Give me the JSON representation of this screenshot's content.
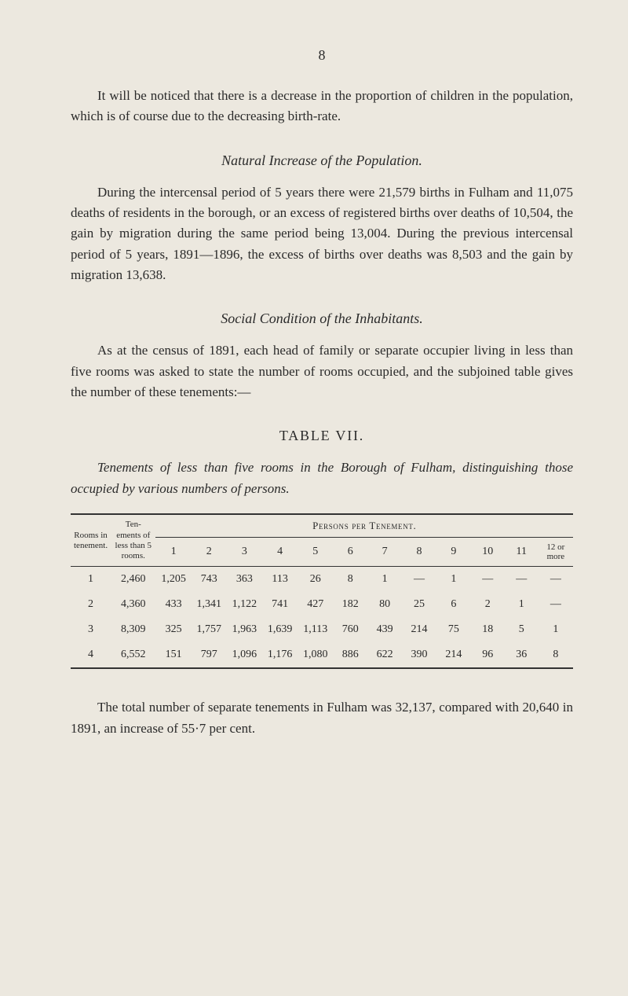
{
  "page_number": "8",
  "para1": "It will be noticed that there is a decrease in the proportion of children in the population, which is of course due to the decreasing birth-rate.",
  "section1": {
    "title": "Natural Increase of the Population.",
    "para": "During the intercensal period of 5 years there were 21,579 births in Fulham and 11,075 deaths of residents in the borough, or an excess of registered births over deaths of 10,504, the gain by migration during the same period being 13,004. During the previous intercensal period of 5 years, 1891—1896, the excess of births over deaths was 8,503 and the gain by migration 13,638."
  },
  "section2": {
    "title": "Social Condition of the Inhabitants.",
    "para": "As at the census of 1891, each head of family or separate occupier living in less than five rooms was asked to state the number of rooms occupied, and the subjoined table gives the number of these tenements:—"
  },
  "table": {
    "label": "TABLE VII.",
    "caption": "Tenements of less than five rooms in the Borough of Fulham, distinguishing those occupied by various numbers of persons.",
    "header_rooms": "Rooms in tenement.",
    "header_tenements": "Ten-ements of less than 5 rooms.",
    "header_persons": "Persons per Tenement.",
    "cols": [
      "1",
      "2",
      "3",
      "4",
      "5",
      "6",
      "7",
      "8",
      "9",
      "10",
      "11"
    ],
    "last_col": "12 or more",
    "rows": [
      {
        "r": "1",
        "t": "2,460",
        "c": [
          "1,205",
          "743",
          "363",
          "113",
          "26",
          "8",
          "1",
          "—",
          "1",
          "—",
          "—",
          "—"
        ]
      },
      {
        "r": "2",
        "t": "4,360",
        "c": [
          "433",
          "1,341",
          "1,122",
          "741",
          "427",
          "182",
          "80",
          "25",
          "6",
          "2",
          "1",
          "—"
        ]
      },
      {
        "r": "3",
        "t": "8,309",
        "c": [
          "325",
          "1,757",
          "1,963",
          "1,639",
          "1,113",
          "760",
          "439",
          "214",
          "75",
          "18",
          "5",
          "1"
        ]
      },
      {
        "r": "4",
        "t": "6,552",
        "c": [
          "151",
          "797",
          "1,096",
          "1,176",
          "1,080",
          "886",
          "622",
          "390",
          "214",
          "96",
          "36",
          "8"
        ]
      }
    ]
  },
  "para_last": "The total number of separate tenements in Fulham was 32,137, compared with 20,640 in 1891, an increase of 55·7 per cent."
}
